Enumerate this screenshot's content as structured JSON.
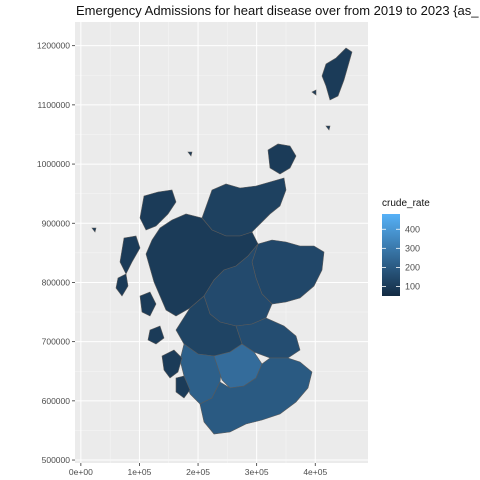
{
  "title": "Emergency Admissions for heart disease over from 2019 to 2023 {as_",
  "chart_data": {
    "type": "choropleth",
    "region": "Scotland",
    "x_ticks": [
      "0e+00",
      "1e+05",
      "2e+05",
      "3e+05",
      "4e+05"
    ],
    "y_ticks": [
      "500000",
      "600000",
      "700000",
      "800000",
      "900000",
      "1000000",
      "1100000",
      "1200000"
    ],
    "xlim": [
      -10000,
      490000
    ],
    "ylim": [
      495000,
      1240000
    ],
    "grid": true,
    "background": "#EBEBEB",
    "legend": {
      "title": "crude_rate",
      "labels": [
        "400",
        "300",
        "200",
        "100"
      ],
      "values": [
        400,
        300,
        200,
        100
      ],
      "range": [
        50,
        480
      ],
      "low_color": "#132B43",
      "high_color": "#56B1F7",
      "placement": "right"
    },
    "areas": [
      {
        "value": 120
      },
      {
        "value": 100
      },
      {
        "value": 140
      },
      {
        "value": 150
      },
      {
        "value": 160
      },
      {
        "value": 130
      },
      {
        "value": 220
      },
      {
        "value": 260
      },
      {
        "value": 200
      }
    ]
  }
}
